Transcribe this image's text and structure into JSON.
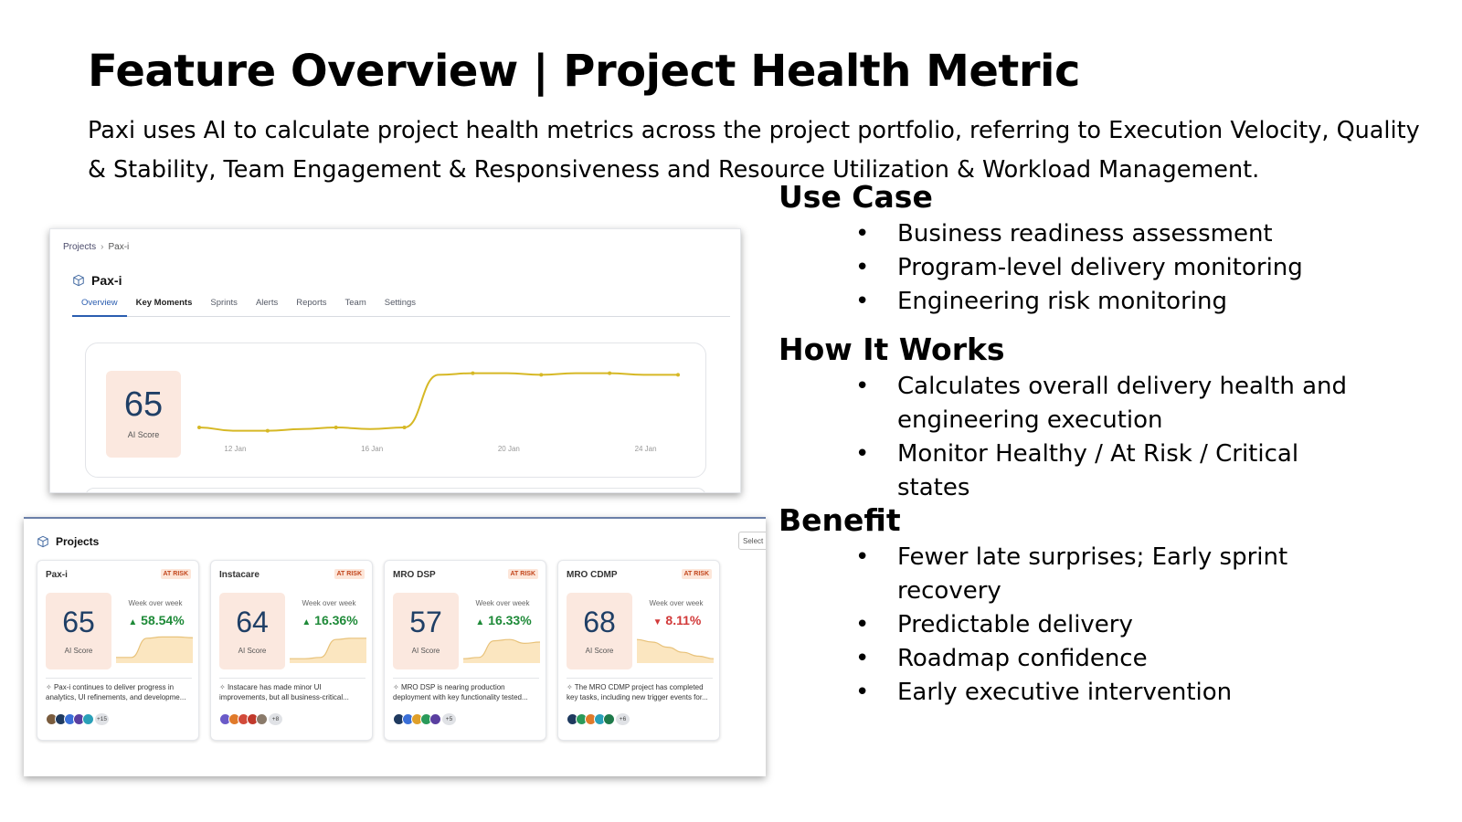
{
  "slide": {
    "title": "Feature Overview | Project Health Metric",
    "subtitle": "Paxi uses AI to calculate project health metrics across the project portfolio, referring to Execution Velocity, Quality & Stability, Team Engagement & Responsiveness and Resource Utilization & Workload Management."
  },
  "sections": {
    "use_case": {
      "heading": "Use Case",
      "items": [
        "Business readiness assessment",
        "Program-level delivery monitoring",
        "Engineering risk monitoring"
      ]
    },
    "how_it_works": {
      "heading": "How It Works",
      "items": [
        "Calculates overall delivery health and engineering execution",
        "Monitor Healthy / At Risk / Critical states"
      ]
    },
    "benefit": {
      "heading": "Benefit",
      "items": [
        "Fewer late surprises; Early sprint recovery",
        "Predictable delivery",
        "Roadmap confidence",
        "Early executive intervention"
      ]
    }
  },
  "screen1": {
    "breadcrumb": [
      "Projects",
      "Pax-i"
    ],
    "project_name": "Pax-i",
    "tabs": [
      "Overview",
      "Key Moments",
      "Sprints",
      "Alerts",
      "Reports",
      "Team",
      "Settings"
    ],
    "active_tab": "Overview",
    "ai_score": "65",
    "ai_score_label": "AI Score",
    "chart_data": {
      "type": "line",
      "x": [
        "11 Jan",
        "12 Jan",
        "13 Jan",
        "14 Jan",
        "15 Jan",
        "16 Jan",
        "17 Jan",
        "18 Jan",
        "19 Jan",
        "20 Jan",
        "21 Jan",
        "22 Jan",
        "23 Jan",
        "24 Jan",
        "25 Jan"
      ],
      "tick_labels": [
        "12 Jan",
        "16 Jan",
        "20 Jan",
        "24 Jan"
      ],
      "values": [
        55,
        54,
        54,
        54.5,
        55,
        54.5,
        55,
        71,
        71.5,
        71.5,
        71,
        71.5,
        71.5,
        71,
        71
      ],
      "ylim": [
        50,
        75
      ],
      "color": "#d6b825",
      "grid": false
    }
  },
  "screen2": {
    "heading": "Projects",
    "select_label": "Select",
    "wow_label": "Week over week",
    "ai_score_label": "AI Score",
    "cards": [
      {
        "name": "Pax-i",
        "badge": "AT RISK",
        "score": "65",
        "change": "58.54%",
        "direction": "up",
        "desc": "Pax-i continues to deliver progress in analytics, UI refinements, and developme...",
        "avatars": [
          "#7a5c3e",
          "#1f3a5f",
          "#3a6fd8",
          "#5a3fa0",
          "#2aa0b8"
        ],
        "more": "+15",
        "spark": [
          0.15,
          0.15,
          0.9,
          0.95,
          0.95,
          0.92
        ]
      },
      {
        "name": "Instacare",
        "badge": "AT RISK",
        "score": "64",
        "change": "16.36%",
        "direction": "up",
        "desc": "Instacare has made minor UI improvements, but all business-critical...",
        "avatars": [
          "#6a5ac8",
          "#e07a2a",
          "#d24a3a",
          "#c0392b",
          "#8a7a6a"
        ],
        "more": "+8",
        "spark": [
          0.1,
          0.1,
          0.15,
          0.85,
          0.9,
          0.9
        ]
      },
      {
        "name": "MRO DSP",
        "badge": "AT RISK",
        "score": "57",
        "change": "16.33%",
        "direction": "up",
        "desc": "MRO DSP is nearing production deployment with key functionality tested...",
        "avatars": [
          "#1f3a5f",
          "#3a6fd8",
          "#e0a02a",
          "#2a9a5a",
          "#5a3fa0"
        ],
        "more": "+5",
        "spark": [
          0.1,
          0.15,
          0.8,
          0.85,
          0.7,
          0.75
        ]
      },
      {
        "name": "MRO CDMP",
        "badge": "AT RISK",
        "score": "68",
        "change": "8.11%",
        "direction": "down",
        "desc": "The MRO CDMP project has completed key tasks, including new trigger events for...",
        "avatars": [
          "#1f3a5f",
          "#2a9a5a",
          "#e07a2a",
          "#2aa0b8",
          "#1e7a4a"
        ],
        "more": "+6",
        "spark": [
          0.85,
          0.75,
          0.55,
          0.35,
          0.2,
          0.1
        ]
      }
    ]
  }
}
